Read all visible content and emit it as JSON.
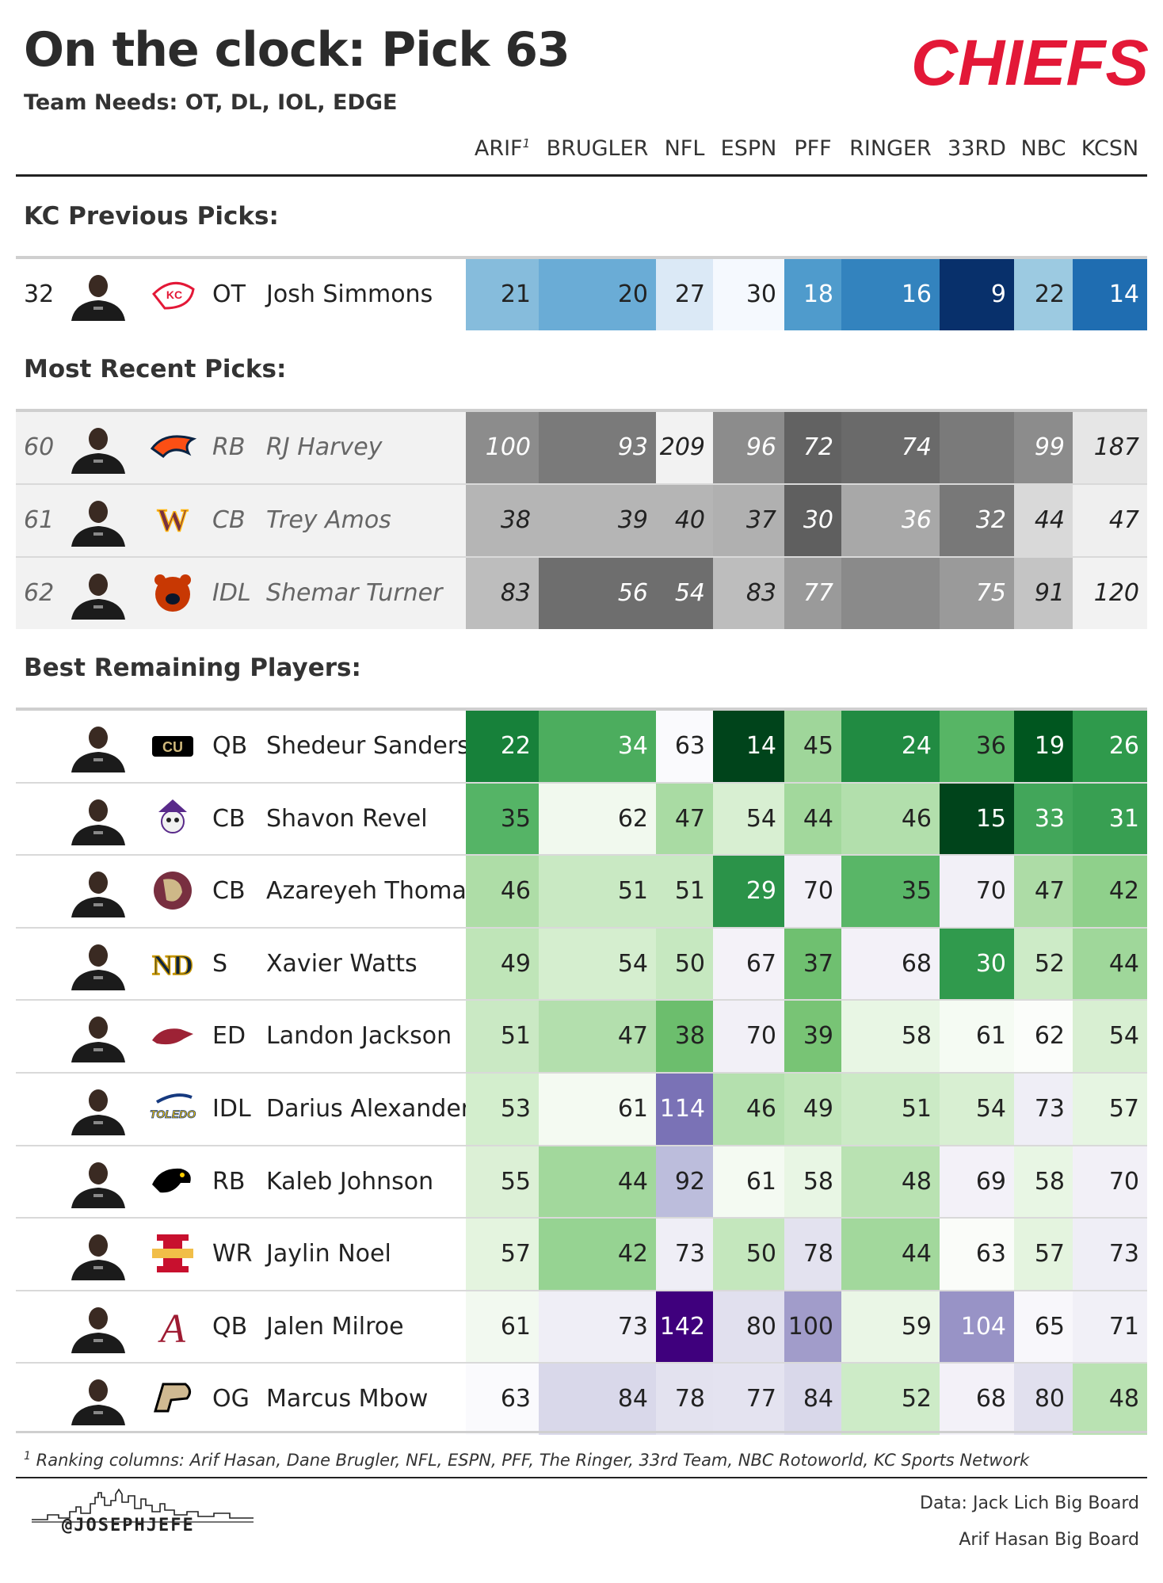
{
  "title": "On the clock: Pick 63",
  "subtitle": "Team Needs: OT, DL, IOL, EDGE",
  "team_logo_text": "CHIEFS",
  "columns": [
    "ARIF",
    "BRUGLER",
    "NFL",
    "ESPN",
    "PFF",
    "RINGER",
    "33RD",
    "NBC",
    "KCSN"
  ],
  "column_footnote_marker": "1",
  "sections": {
    "kc_previous": "KC Previous Picks:",
    "most_recent": "Most Recent Picks:",
    "best_remaining": "Best Remaining Players:"
  },
  "kc_previous_picks": [
    {
      "pick": "32",
      "team": "chiefs",
      "pos": "OT",
      "name": "Josh Simmons",
      "ranks": [
        "21",
        "20",
        "27",
        "30",
        "18",
        "16",
        "9",
        "22",
        "14"
      ],
      "colors": [
        "#86bcdc",
        "#6aacd6",
        "#dbe9f6",
        "#f5f9fe",
        "#4f9bcc",
        "#3383be",
        "#08306b",
        "#9ccae1",
        "#1f6db1"
      ],
      "text_colors": [
        "#222",
        "#222",
        "#222",
        "#222",
        "#fff",
        "#fff",
        "#fff",
        "#222",
        "#fff"
      ]
    }
  ],
  "most_recent_picks": [
    {
      "pick": "60",
      "team": "broncos",
      "pos": "RB",
      "name": "RJ Harvey",
      "ranks": [
        "100",
        "93",
        "209",
        "96",
        "72",
        "74",
        "",
        "99",
        "187"
      ],
      "colors": [
        "#8c8c8c",
        "#7a7a7a",
        "#f2f2f2",
        "#8c8c8c",
        "#626262",
        "#6a6a6a",
        "#7a7a7a",
        "#8c8c8c",
        "#e6e6e6"
      ],
      "text_colors": [
        "#fff",
        "#fff",
        "#222",
        "#fff",
        "#fff",
        "#fff",
        "#fff",
        "#fff",
        "#222"
      ]
    },
    {
      "pick": "61",
      "team": "commanders",
      "pos": "CB",
      "name": "Trey Amos",
      "ranks": [
        "38",
        "39",
        "40",
        "37",
        "30",
        "36",
        "32",
        "44",
        "47"
      ],
      "colors": [
        "#b5b5b5",
        "#b5b5b5",
        "#b5b5b5",
        "#b0b0b0",
        "#5f5f5f",
        "#a8a8a8",
        "#787878",
        "#d9d9d9",
        "#efefef"
      ],
      "text_colors": [
        "#222",
        "#222",
        "#222",
        "#222",
        "#fff",
        "#fff",
        "#fff",
        "#222",
        "#222"
      ]
    },
    {
      "pick": "62",
      "team": "bears",
      "pos": "IDL",
      "name": "Shemar Turner",
      "ranks": [
        "83",
        "56",
        "54",
        "83",
        "77",
        "",
        "75",
        "91",
        "120"
      ],
      "colors": [
        "#bdbdbd",
        "#6e6e6e",
        "#6e6e6e",
        "#bdbdbd",
        "#9a9a9a",
        "#8a8a8a",
        "#9a9a9a",
        "#c4c4c4",
        "#f2f2f2"
      ],
      "text_colors": [
        "#222",
        "#fff",
        "#fff",
        "#222",
        "#fff",
        "#fff",
        "#fff",
        "#222",
        "#222"
      ]
    }
  ],
  "best_remaining": [
    {
      "team": "colorado",
      "pos": "QB",
      "name": "Shedeur Sanders",
      "ranks": [
        "22",
        "34",
        "63",
        "14",
        "45",
        "24",
        "36",
        "19",
        "26"
      ],
      "colors": [
        "#17813a",
        "#4cad5e",
        "#fafafd",
        "#00441b",
        "#9fd69a",
        "#218b42",
        "#57b565",
        "#00561f",
        "#2f9a4c"
      ],
      "text_colors": [
        "#fff",
        "#fff",
        "#222",
        "#fff",
        "#222",
        "#fff",
        "#222",
        "#fff",
        "#fff"
      ]
    },
    {
      "team": "ecu",
      "pos": "CB",
      "name": "Shavon Revel",
      "ranks": [
        "35",
        "62",
        "47",
        "54",
        "44",
        "46",
        "15",
        "33",
        "31"
      ],
      "colors": [
        "#55b466",
        "#f1f9ee",
        "#a9dba3",
        "#d8efd2",
        "#a2d89c",
        "#b2dfac",
        "#00441b",
        "#42a65a",
        "#389f52"
      ],
      "text_colors": [
        "#222",
        "#222",
        "#222",
        "#222",
        "#222",
        "#222",
        "#fff",
        "#fff",
        "#fff"
      ]
    },
    {
      "team": "fsu",
      "pos": "CB",
      "name": "Azareyeh Thomas",
      "ranks": [
        "46",
        "51",
        "51",
        "29",
        "70",
        "35",
        "70",
        "47",
        "42"
      ],
      "colors": [
        "#aedda7",
        "#c9e9c3",
        "#c9e9c3",
        "#2b9349",
        "#f2f0f7",
        "#59b667",
        "#f2f0f7",
        "#addca6",
        "#8fd08b"
      ],
      "text_colors": [
        "#222",
        "#222",
        "#222",
        "#fff",
        "#222",
        "#222",
        "#222",
        "#222",
        "#222"
      ]
    },
    {
      "team": "notre-dame",
      "pos": "S",
      "name": "Xavier Watts",
      "ranks": [
        "49",
        "54",
        "50",
        "67",
        "37",
        "68",
        "30",
        "52",
        "44"
      ],
      "colors": [
        "#bfe5b8",
        "#d5eecf",
        "#c6e8c0",
        "#f4f2f8",
        "#6fc070",
        "#f3f1f8",
        "#309a4d",
        "#cdebc7",
        "#9fd79a"
      ],
      "text_colors": [
        "#222",
        "#222",
        "#222",
        "#222",
        "#222",
        "#222",
        "#fff",
        "#222",
        "#222"
      ]
    },
    {
      "team": "arkansas",
      "pos": "ED",
      "name": "Landon Jackson",
      "ranks": [
        "51",
        "47",
        "38",
        "70",
        "39",
        "58",
        "61",
        "62",
        "54"
      ],
      "colors": [
        "#cae9c4",
        "#b3dfad",
        "#6cbe6d",
        "#f2f0f7",
        "#78c475",
        "#e8f6e4",
        "#f5fbf3",
        "#fbfdfa",
        "#d8efd2"
      ],
      "text_colors": [
        "#222",
        "#222",
        "#222",
        "#222",
        "#222",
        "#222",
        "#222",
        "#222",
        "#222"
      ]
    },
    {
      "team": "toledo",
      "pos": "IDL",
      "name": "Darius Alexander",
      "ranks": [
        "53",
        "61",
        "114",
        "46",
        "49",
        "51",
        "54",
        "73",
        "57"
      ],
      "colors": [
        "#d3eecd",
        "#f4faf2",
        "#7a72b6",
        "#b4e0ae",
        "#c0e5b9",
        "#cbeac5",
        "#d8efd2",
        "#efeef6",
        "#e6f5e2"
      ],
      "text_colors": [
        "#222",
        "#222",
        "#fff",
        "#222",
        "#222",
        "#222",
        "#222",
        "#222",
        "#222"
      ]
    },
    {
      "team": "iowa",
      "pos": "RB",
      "name": "Kaleb Johnson",
      "ranks": [
        "55",
        "44",
        "92",
        "61",
        "58",
        "48",
        "69",
        "58",
        "70"
      ],
      "colors": [
        "#dcf0d6",
        "#a2d89c",
        "#bcbddc",
        "#f4faf2",
        "#e8f6e4",
        "#b9e2b2",
        "#f3f1f8",
        "#e8f6e4",
        "#f2f0f7"
      ],
      "text_colors": [
        "#222",
        "#222",
        "#222",
        "#222",
        "#222",
        "#222",
        "#222",
        "#222",
        "#222"
      ]
    },
    {
      "team": "iowa-state",
      "pos": "WR",
      "name": "Jaylin Noel",
      "ranks": [
        "57",
        "42",
        "73",
        "50",
        "78",
        "44",
        "63",
        "57",
        "73"
      ],
      "colors": [
        "#e4f4df",
        "#96d392",
        "#efeef6",
        "#c4e7bd",
        "#e3e2ef",
        "#a2d89c",
        "#fafcf9",
        "#e4f4df",
        "#efeef6"
      ],
      "text_colors": [
        "#222",
        "#222",
        "#222",
        "#222",
        "#222",
        "#222",
        "#222",
        "#222",
        "#222"
      ]
    },
    {
      "team": "alabama",
      "pos": "QB",
      "name": "Jalen Milroe",
      "ranks": [
        "61",
        "73",
        "142",
        "80",
        "100",
        "59",
        "104",
        "65",
        "71"
      ],
      "colors": [
        "#f2f9f0",
        "#efeef6",
        "#3f007d",
        "#e1e0ee",
        "#a19cca",
        "#eaf6e6",
        "#9893c6",
        "#f8f7fb",
        "#f1f0f7"
      ],
      "text_colors": [
        "#222",
        "#222",
        "#fff",
        "#222",
        "#222",
        "#222",
        "#fff",
        "#222",
        "#222"
      ]
    },
    {
      "team": "purdue",
      "pos": "OG",
      "name": "Marcus Mbow",
      "ranks": [
        "63",
        "84",
        "78",
        "77",
        "84",
        "52",
        "68",
        "80",
        "48"
      ],
      "colors": [
        "#fafafd",
        "#d9d8ea",
        "#e3e2ef",
        "#e4e3f0",
        "#d9d8ea",
        "#cdebc7",
        "#f3f1f8",
        "#e1e0ee",
        "#b9e2b2"
      ],
      "text_colors": [
        "#222",
        "#222",
        "#222",
        "#222",
        "#222",
        "#222",
        "#222",
        "#222",
        "#222"
      ]
    }
  ],
  "footnote_marker": "1",
  "footnote": "Ranking columns: Arif Hasan, Dane Brugler, NFL, ESPN, PFF, The Ringer, 33rd Team, NBC Rotoworld, KC Sports Network",
  "handle": "@JOSEPHJEFE",
  "credits": [
    "Data: Jack Lich Big Board",
    "Arif Hasan Big Board"
  ],
  "accent_color": "#e31837"
}
